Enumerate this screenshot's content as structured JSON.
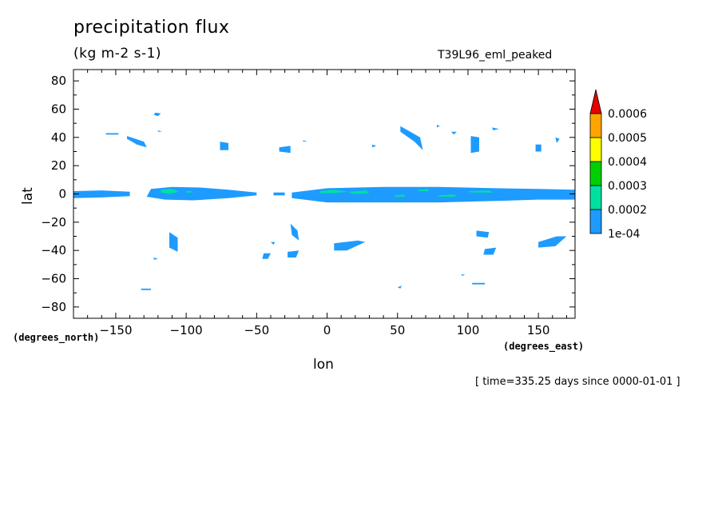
{
  "title": "precipitation flux",
  "units": "(kg m-2 s-1)",
  "run_label": "T39L96_eml_peaked",
  "timestamp": "[ time=335.25 days since 0000-01-01 ]",
  "chart_data": {
    "type": "heatmap",
    "title": "precipitation flux",
    "xlabel": "lon",
    "ylabel": "lat",
    "x_units": "(degrees_east)",
    "y_units": "(degrees_north)",
    "xlim": [
      -180,
      176
    ],
    "ylim": [
      -88,
      88
    ],
    "x_ticks": [
      -150,
      -100,
      -50,
      0,
      50,
      100,
      150
    ],
    "x_tick_labels": [
      "−150",
      "−100",
      "−50",
      "0",
      "50",
      "100",
      "150"
    ],
    "y_ticks": [
      80,
      60,
      40,
      20,
      0,
      -20,
      -40,
      -60,
      -80
    ],
    "y_tick_labels": [
      "80",
      "60",
      "40",
      "20",
      "0",
      "−20",
      "−40",
      "−60",
      "−80"
    ],
    "colorbar": {
      "levels": [
        "1e-04",
        "0.0002",
        "0.0003",
        "0.0004",
        "0.0005",
        "0.0006"
      ],
      "colors": [
        "#1e9bff",
        "#00e0a0",
        "#00d000",
        "#ffff00",
        "#ffa500",
        "#e60000"
      ]
    },
    "regions": [
      {
        "level": 0,
        "points": [
          [
            -180,
            2
          ],
          [
            -160,
            2.5
          ],
          [
            -140,
            1.5
          ],
          [
            -140,
            -1.5
          ],
          [
            -160,
            -2.5
          ],
          [
            -180,
            -3
          ]
        ]
      },
      {
        "level": 0,
        "points": [
          [
            -125,
            3.5
          ],
          [
            -110,
            5
          ],
          [
            -90,
            4.5
          ],
          [
            -70,
            3
          ],
          [
            -50,
            1
          ],
          [
            -50,
            -1
          ],
          [
            -70,
            -3
          ],
          [
            -95,
            -4.5
          ],
          [
            -115,
            -4
          ],
          [
            -128,
            -2
          ]
        ]
      },
      {
        "level": 1,
        "points": [
          [
            -118,
            3
          ],
          [
            -110,
            3.5
          ],
          [
            -105,
            1.5
          ],
          [
            -112,
            0
          ],
          [
            -118,
            1
          ]
        ]
      },
      {
        "level": 1,
        "points": [
          [
            -100,
            2
          ],
          [
            -96,
            2.2
          ],
          [
            -96,
            1
          ],
          [
            -100,
            1
          ]
        ]
      },
      {
        "level": 0,
        "points": [
          [
            -38,
            1
          ],
          [
            -30,
            1
          ],
          [
            -30,
            -1
          ],
          [
            -38,
            -1
          ]
        ]
      },
      {
        "level": 0,
        "points": [
          [
            -25,
            1
          ],
          [
            0,
            4
          ],
          [
            40,
            5
          ],
          [
            80,
            5
          ],
          [
            120,
            4
          ],
          [
            150,
            3.5
          ],
          [
            176,
            3
          ],
          [
            176,
            -4
          ],
          [
            150,
            -4
          ],
          [
            120,
            -5
          ],
          [
            80,
            -6
          ],
          [
            40,
            -6
          ],
          [
            0,
            -6
          ],
          [
            -25,
            -3
          ]
        ]
      },
      {
        "level": 1,
        "points": [
          [
            -5,
            2
          ],
          [
            5,
            3
          ],
          [
            15,
            1.5
          ],
          [
            5,
            0.5
          ],
          [
            -5,
            0.5
          ]
        ]
      },
      {
        "level": 1,
        "points": [
          [
            15,
            1.5
          ],
          [
            28,
            2.5
          ],
          [
            30,
            0.5
          ],
          [
            18,
            0
          ]
        ]
      },
      {
        "level": 1,
        "points": [
          [
            48,
            -1
          ],
          [
            55,
            -0.5
          ],
          [
            55,
            -2
          ],
          [
            48,
            -2
          ]
        ]
      },
      {
        "level": 1,
        "points": [
          [
            78,
            -1
          ],
          [
            90,
            -0.5
          ],
          [
            92,
            -2
          ],
          [
            80,
            -2
          ]
        ]
      },
      {
        "level": 1,
        "points": [
          [
            100,
            2
          ],
          [
            115,
            2.5
          ],
          [
            118,
            1
          ],
          [
            102,
            1
          ]
        ]
      },
      {
        "level": 1,
        "points": [
          [
            65,
            3
          ],
          [
            72,
            3.5
          ],
          [
            72,
            2
          ],
          [
            65,
            2
          ]
        ]
      },
      {
        "level": 0,
        "points": [
          [
            -157,
            43
          ],
          [
            -148,
            43
          ],
          [
            -148,
            42
          ],
          [
            -157,
            42
          ]
        ]
      },
      {
        "level": 0,
        "points": [
          [
            -142,
            41
          ],
          [
            -130,
            37
          ],
          [
            -128,
            33
          ],
          [
            -135,
            35
          ],
          [
            -142,
            39
          ]
        ]
      },
      {
        "level": 0,
        "points": [
          [
            -122,
            57.5
          ],
          [
            -118,
            57
          ],
          [
            -120,
            55
          ],
          [
            -123,
            56
          ]
        ]
      },
      {
        "level": 0,
        "points": [
          [
            -120,
            45
          ],
          [
            -117,
            44
          ],
          [
            -120,
            44
          ]
        ]
      },
      {
        "level": 0,
        "points": [
          [
            -76,
            37
          ],
          [
            -70,
            36
          ],
          [
            -70,
            31
          ],
          [
            -76,
            31
          ]
        ]
      },
      {
        "level": 0,
        "points": [
          [
            -34,
            33
          ],
          [
            -26,
            34
          ],
          [
            -26,
            29
          ],
          [
            -34,
            30
          ]
        ]
      },
      {
        "level": 0,
        "points": [
          [
            -17,
            38
          ],
          [
            -14,
            37
          ],
          [
            -17,
            37
          ]
        ]
      },
      {
        "level": 0,
        "points": [
          [
            52,
            48
          ],
          [
            66,
            40
          ],
          [
            68,
            31
          ],
          [
            62,
            37
          ],
          [
            52,
            44
          ]
        ]
      },
      {
        "level": 0,
        "points": [
          [
            78,
            49
          ],
          [
            80,
            48
          ],
          [
            78,
            47
          ]
        ]
      },
      {
        "level": 0,
        "points": [
          [
            32,
            35
          ],
          [
            35,
            34
          ],
          [
            32,
            33
          ]
        ]
      },
      {
        "level": 0,
        "points": [
          [
            102,
            41
          ],
          [
            108,
            40
          ],
          [
            108,
            30
          ],
          [
            102,
            29
          ]
        ]
      },
      {
        "level": 0,
        "points": [
          [
            117,
            47
          ],
          [
            122,
            46
          ],
          [
            118,
            45
          ]
        ]
      },
      {
        "level": 0,
        "points": [
          [
            88,
            44
          ],
          [
            92,
            44
          ],
          [
            90,
            42
          ]
        ]
      },
      {
        "level": 0,
        "points": [
          [
            148,
            35
          ],
          [
            152,
            35
          ],
          [
            152,
            30
          ],
          [
            148,
            30
          ]
        ]
      },
      {
        "level": 0,
        "points": [
          [
            162,
            40
          ],
          [
            165,
            39
          ],
          [
            163,
            36
          ]
        ]
      },
      {
        "level": 0,
        "points": [
          [
            -112,
            -27
          ],
          [
            -106,
            -31
          ],
          [
            -106,
            -41
          ],
          [
            -112,
            -38
          ]
        ]
      },
      {
        "level": 0,
        "points": [
          [
            -123,
            -45
          ],
          [
            -120,
            -46
          ],
          [
            -123,
            -46.5
          ]
        ]
      },
      {
        "level": 0,
        "points": [
          [
            -26,
            -21
          ],
          [
            -21,
            -26
          ],
          [
            -20,
            -33
          ],
          [
            -25,
            -29
          ]
        ]
      },
      {
        "level": 0,
        "points": [
          [
            -28,
            -41
          ],
          [
            -20,
            -40
          ],
          [
            -22,
            -45
          ],
          [
            -28,
            -45
          ]
        ]
      },
      {
        "level": 0,
        "points": [
          [
            -45,
            -42
          ],
          [
            -40,
            -42
          ],
          [
            -42,
            -46
          ],
          [
            -46,
            -46
          ]
        ]
      },
      {
        "level": 0,
        "points": [
          [
            -40,
            -34
          ],
          [
            -37,
            -34
          ],
          [
            -38,
            -36
          ]
        ]
      },
      {
        "level": 0,
        "points": [
          [
            5,
            -35
          ],
          [
            22,
            -33
          ],
          [
            27,
            -34
          ],
          [
            14,
            -40
          ],
          [
            5,
            -40
          ]
        ]
      },
      {
        "level": 0,
        "points": [
          [
            106,
            -26
          ],
          [
            115,
            -27
          ],
          [
            114,
            -31
          ],
          [
            106,
            -30
          ]
        ]
      },
      {
        "level": 0,
        "points": [
          [
            112,
            -39
          ],
          [
            120,
            -38
          ],
          [
            118,
            -43
          ],
          [
            111,
            -43
          ]
        ]
      },
      {
        "level": 0,
        "points": [
          [
            150,
            -34
          ],
          [
            163,
            -30
          ],
          [
            170,
            -30
          ],
          [
            162,
            -37
          ],
          [
            150,
            -38
          ]
        ]
      },
      {
        "level": 0,
        "points": [
          [
            -132,
            -67
          ],
          [
            -125,
            -67
          ],
          [
            -125,
            -68
          ],
          [
            -132,
            -68
          ]
        ]
      },
      {
        "level": 0,
        "points": [
          [
            95,
            -57
          ],
          [
            98,
            -57
          ],
          [
            96,
            -58
          ]
        ]
      },
      {
        "level": 0,
        "points": [
          [
            103,
            -63
          ],
          [
            112,
            -63
          ],
          [
            112,
            -64
          ],
          [
            103,
            -64
          ]
        ]
      },
      {
        "level": 0,
        "points": [
          [
            50,
            -66
          ],
          [
            53,
            -65
          ],
          [
            52,
            -67
          ]
        ]
      }
    ]
  }
}
